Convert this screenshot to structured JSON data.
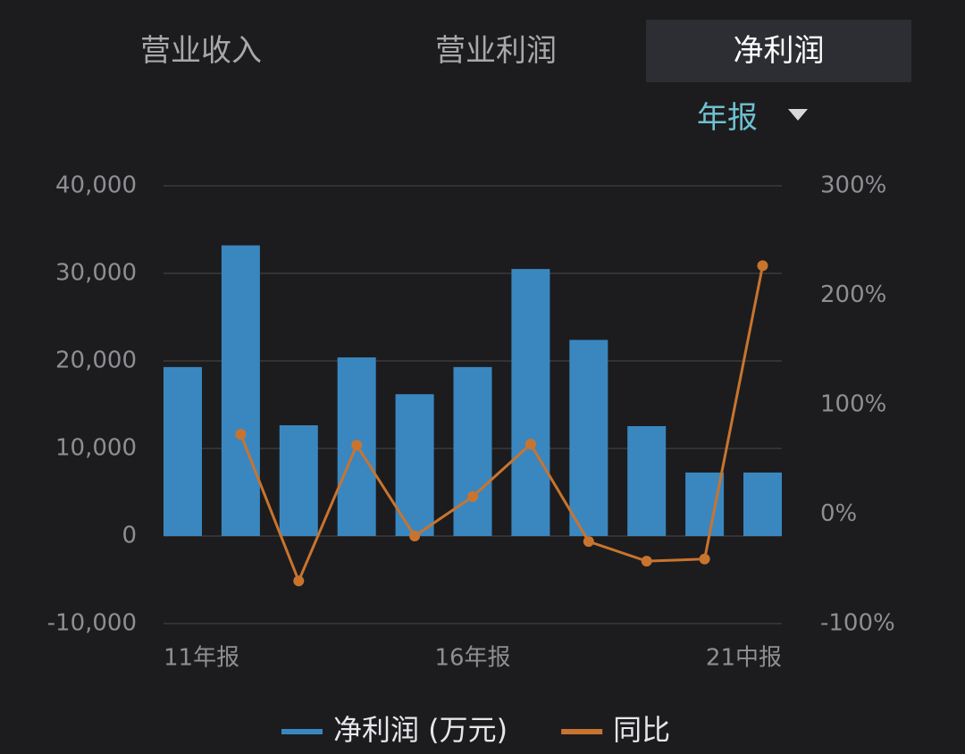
{
  "tabs": [
    "营业收入",
    "营业利润",
    "净利润"
  ],
  "period": "年报",
  "chart_data": {
    "type": "bar",
    "categories": [
      "11年报",
      null,
      null,
      null,
      null,
      "16年报",
      null,
      null,
      null,
      null,
      "21中报"
    ],
    "series": [
      {
        "name": "净利润 (万元)",
        "color": "#3a87c0",
        "values": [
          19300,
          33200,
          12650,
          20400,
          16200,
          19300,
          30500,
          22400,
          12550,
          7250,
          7250
        ]
      },
      {
        "name": "同比",
        "color": "#c8742f",
        "axis": "y2",
        "type": "line",
        "values": [
          null,
          73,
          -61,
          63,
          -20,
          16,
          64,
          -25,
          -43,
          -41,
          227
        ]
      }
    ],
    "ylim": [
      -10000,
      40000
    ],
    "yticks": [
      {
        "value": -10000,
        "label": "-10,000"
      },
      0,
      {
        "value": 10000,
        "label": "10,000"
      },
      {
        "value": 20000,
        "label": "20,000"
      },
      {
        "value": 30000,
        "label": "30,000"
      },
      {
        "value": 40000,
        "label": "40,000"
      }
    ],
    "y2lim": [
      -100,
      300
    ],
    "y2ticks": [
      {
        "value": -100,
        "label": "-100%"
      },
      {
        "value": 0,
        "label": "0%"
      },
      {
        "value": 100,
        "label": "100%"
      },
      {
        "value": 200,
        "label": "200%"
      },
      {
        "value": 300,
        "label": "300%"
      }
    ],
    "grid": true,
    "legend": "bottom"
  }
}
